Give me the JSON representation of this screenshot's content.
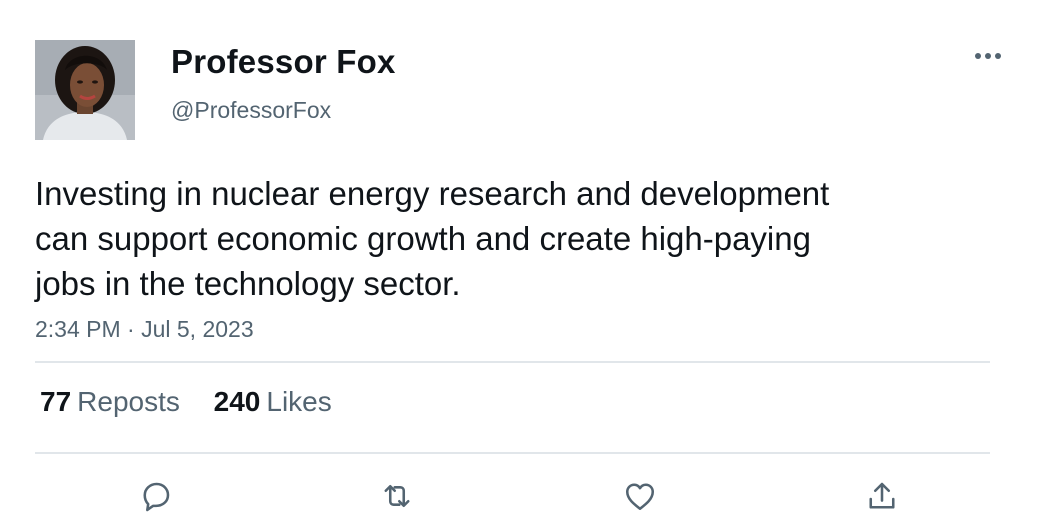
{
  "author": {
    "display_name": "Professor Fox",
    "handle": "@ProfessorFox",
    "avatar": "profile-photo"
  },
  "more_icon": "more-horizontal-icon",
  "tweet": {
    "text_lines": [
      "Investing in nuclear energy research and development",
      "can support economic growth and create high-paying",
      "jobs in the technology sector."
    ],
    "timestamp": "2:34 PM · Jul 5, 2023"
  },
  "stats": {
    "reposts_count": "77",
    "reposts_label": "Reposts",
    "likes_count": "240",
    "likes_label": "Likes"
  },
  "actions": {
    "reply_icon": "reply-icon",
    "repost_icon": "repost-icon",
    "like_icon": "heart-icon",
    "share_icon": "share-icon"
  },
  "colors": {
    "text_primary": "#0f1419",
    "text_secondary": "#536471",
    "separator": "#e1e6ea"
  }
}
